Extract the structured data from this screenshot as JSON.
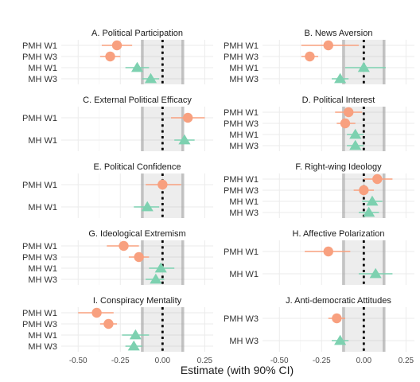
{
  "chart_data": {
    "type": "dot-and-whisker",
    "xlabel": "Estimate (with 90% CI)",
    "xlim": [
      -0.6,
      0.3
    ],
    "x_ticks": [
      -0.5,
      -0.25,
      0.0,
      0.25
    ],
    "x_tick_labels": [
      "-0.50",
      "-0.25",
      "0.00",
      "0.25"
    ],
    "shaded_band": [
      -0.12,
      0.12
    ],
    "reference_line": 0,
    "legend": "none",
    "grid": true,
    "group_colors": {
      "PMH": "#f8a07f",
      "MH": "#7dd1b0"
    },
    "group_markers": {
      "PMH": "circle",
      "MH": "triangle"
    },
    "panels": [
      {
        "title": "A. Political Participation",
        "rows": [
          {
            "label": "PMH W1",
            "group": "PMH",
            "est": -0.27,
            "lo": -0.36,
            "hi": -0.18
          },
          {
            "label": "PMH W3",
            "group": "PMH",
            "est": -0.31,
            "lo": -0.37,
            "hi": -0.25
          },
          {
            "label": "MH W1",
            "group": "MH",
            "est": -0.15,
            "lo": -0.22,
            "hi": -0.08
          },
          {
            "label": "MH W3",
            "group": "MH",
            "est": -0.07,
            "lo": -0.12,
            "hi": -0.02
          }
        ]
      },
      {
        "title": "B. News Aversion",
        "rows": [
          {
            "label": "PMH W1",
            "group": "PMH",
            "est": -0.21,
            "lo": -0.37,
            "hi": -0.03
          },
          {
            "label": "PMH W3",
            "group": "PMH",
            "est": -0.32,
            "lo": -0.37,
            "hi": -0.27
          },
          {
            "label": "MH W1",
            "group": "MH",
            "est": 0.0,
            "lo": -0.11,
            "hi": 0.13
          },
          {
            "label": "MH W3",
            "group": "MH",
            "est": -0.14,
            "lo": -0.19,
            "hi": -0.09
          }
        ]
      },
      {
        "title": "C. External Political Efficacy",
        "rows": [
          {
            "label": "PMH W1",
            "group": "PMH",
            "est": 0.15,
            "lo": 0.05,
            "hi": 0.25
          },
          {
            "label": "MH W1",
            "group": "MH",
            "est": 0.13,
            "lo": 0.07,
            "hi": 0.19
          }
        ]
      },
      {
        "title": "D. Political Interest",
        "rows": [
          {
            "label": "PMH W1",
            "group": "PMH",
            "est": -0.09,
            "lo": -0.17,
            "hi": -0.01
          },
          {
            "label": "PMH W3",
            "group": "PMH",
            "est": -0.11,
            "lo": -0.16,
            "hi": -0.05
          },
          {
            "label": "MH W1",
            "group": "MH",
            "est": -0.05,
            "lo": -0.1,
            "hi": 0.0
          },
          {
            "label": "MH W3",
            "group": "MH",
            "est": -0.05,
            "lo": -0.1,
            "hi": 0.0
          }
        ]
      },
      {
        "title": "E. Political Confidence",
        "rows": [
          {
            "label": "PMH W1",
            "group": "PMH",
            "est": 0.0,
            "lo": -0.1,
            "hi": 0.11
          },
          {
            "label": "MH W1",
            "group": "MH",
            "est": -0.09,
            "lo": -0.17,
            "hi": -0.02
          }
        ]
      },
      {
        "title": "F. Right-wing Ideology",
        "rows": [
          {
            "label": "PMH W1",
            "group": "PMH",
            "est": 0.08,
            "lo": 0.0,
            "hi": 0.17
          },
          {
            "label": "PMH W3",
            "group": "PMH",
            "est": 0.0,
            "lo": -0.06,
            "hi": 0.06
          },
          {
            "label": "MH W1",
            "group": "MH",
            "est": 0.05,
            "lo": -0.01,
            "hi": 0.11
          },
          {
            "label": "MH W3",
            "group": "MH",
            "est": 0.03,
            "lo": -0.03,
            "hi": 0.09
          }
        ]
      },
      {
        "title": "G. Ideological Extremism",
        "rows": [
          {
            "label": "PMH W1",
            "group": "PMH",
            "est": -0.23,
            "lo": -0.33,
            "hi": -0.14
          },
          {
            "label": "PMH W3",
            "group": "PMH",
            "est": -0.14,
            "lo": -0.2,
            "hi": -0.08
          },
          {
            "label": "MH W1",
            "group": "MH",
            "est": -0.01,
            "lo": -0.08,
            "hi": 0.07
          },
          {
            "label": "MH W3",
            "group": "MH",
            "est": -0.04,
            "lo": -0.1,
            "hi": 0.01
          }
        ]
      },
      {
        "title": "H. Affective Polarization",
        "rows": [
          {
            "label": "PMH W1",
            "group": "PMH",
            "est": -0.21,
            "lo": -0.35,
            "hi": -0.08
          },
          {
            "label": "MH W1",
            "group": "MH",
            "est": 0.07,
            "lo": -0.03,
            "hi": 0.17
          }
        ]
      },
      {
        "title": "I. Conspiracy Mentality",
        "rows": [
          {
            "label": "PMH W1",
            "group": "PMH",
            "est": -0.39,
            "lo": -0.5,
            "hi": -0.29
          },
          {
            "label": "PMH W3",
            "group": "PMH",
            "est": -0.32,
            "lo": -0.37,
            "hi": -0.27
          },
          {
            "label": "MH W1",
            "group": "MH",
            "est": -0.16,
            "lo": -0.24,
            "hi": -0.08
          },
          {
            "label": "MH W3",
            "group": "MH",
            "est": -0.17,
            "lo": -0.22,
            "hi": -0.12
          }
        ]
      },
      {
        "title": "J. Anti-democratic Attitudes",
        "rows": [
          {
            "label": "PMH W3",
            "group": "PMH",
            "est": -0.16,
            "lo": -0.21,
            "hi": -0.11
          },
          {
            "label": "MH W3",
            "group": "MH",
            "est": -0.14,
            "lo": -0.19,
            "hi": -0.09
          }
        ]
      }
    ]
  }
}
